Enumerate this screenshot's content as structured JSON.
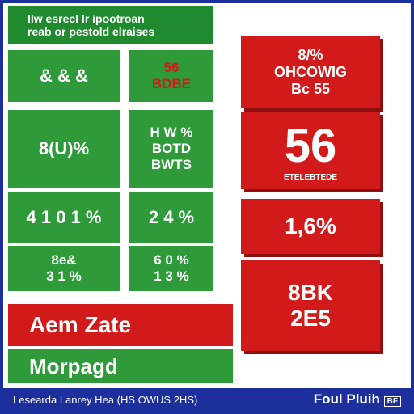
{
  "header": {
    "lines": [
      "Ilw esrecl lr ipootroan",
      "reab or pestold elraises"
    ]
  },
  "tiles": [
    {
      "lines": [
        "& & &"
      ]
    },
    {
      "lines": [
        "56",
        "BDBE"
      ]
    },
    {
      "lines": [
        "8(U)%"
      ]
    },
    {
      "lines": [
        "H W %",
        "BOTD",
        "BWTS"
      ]
    },
    {
      "lines": [
        "4 1 0 1 %"
      ]
    },
    {
      "lines": [
        "2 4 %"
      ]
    },
    {
      "lines": [
        "8e&",
        "3 1 %"
      ]
    },
    {
      "lines": [
        "6 0 %",
        "1 3 %"
      ]
    }
  ],
  "bars": [
    "Aem Zate",
    "Morpagd"
  ],
  "panels": [
    {
      "lines": [
        "8/%",
        "OHCOWIG",
        "Bc 55"
      ]
    },
    {
      "lines": [
        "56",
        "ETELEBTEDE"
      ]
    },
    {
      "lines": [
        "1,6%"
      ]
    },
    {
      "lines": [
        "8BK",
        "2E5"
      ]
    }
  ],
  "footer": {
    "left": "Lesearda Lanrey  Hea (HS OWUS 2HS)",
    "right": "Foul Pluih",
    "badge": "BF"
  }
}
